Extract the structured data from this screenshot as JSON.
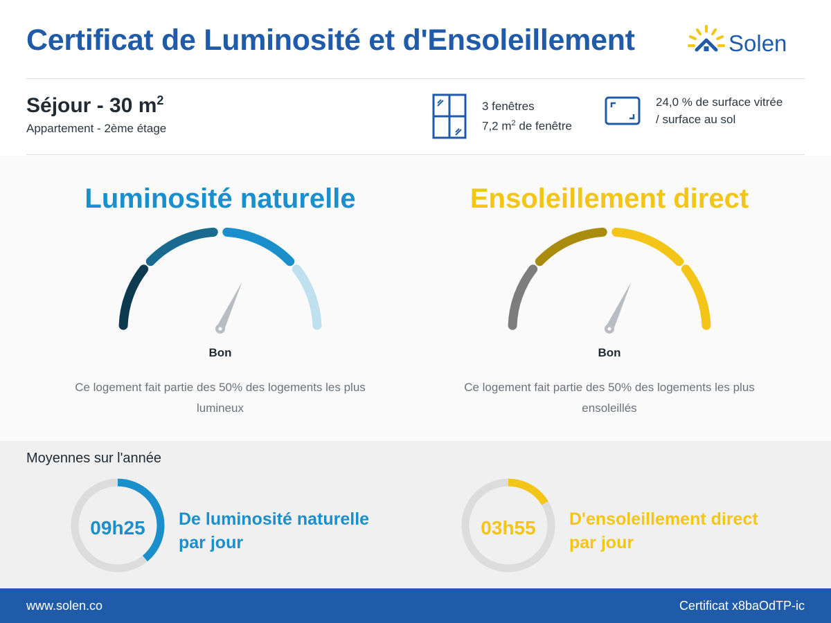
{
  "header": {
    "title": "Certificat de Luminosité et d'Ensoleillement",
    "logo_text": "Solen",
    "logo_icon": "sun-house-icon"
  },
  "room": {
    "title": "Séjour - 30 m",
    "title_sup": "2",
    "subtitle": "Appartement - 2ème étage"
  },
  "stats": {
    "windows_count": "3 fenêtres",
    "windows_area": "7,2 m",
    "windows_area_sup": "2",
    "windows_area_suffix": " de fenêtre",
    "glazed_line1": "24,0 % de surface vitrée",
    "glazed_line2": "/ surface au sol",
    "windows_icon": "window-icon",
    "surface_icon": "floor-area-icon"
  },
  "gauges": [
    {
      "title": "Luminosité naturelle",
      "color": "#1a8fcc",
      "segment_colors": [
        "#0e3a4f",
        "#196a8e",
        "#1a8fcc",
        "#bfe0ef"
      ],
      "needle_segment": 2,
      "level": "Bon",
      "description": "Ce logement fait partie des 50% des logements les plus lumineux"
    },
    {
      "title": "Ensoleillement direct",
      "color": "#f2c518",
      "segment_colors": [
        "#7d7d7d",
        "#a98c0e",
        "#f2c518",
        "#f2c518"
      ],
      "needle_segment": 2,
      "level": "Bon",
      "description": "Ce logement fait partie des 50% des logements les plus ensoleillés"
    }
  ],
  "averages": {
    "title": "Moyennes sur l'année",
    "items": [
      {
        "value": "09h25",
        "fraction": 0.39,
        "line1": "De luminosité naturelle",
        "line2": "par jour",
        "color": "#1a8fcc"
      },
      {
        "value": "03h55",
        "fraction": 0.163,
        "line1": "D'ensoleillement direct",
        "line2": "par jour",
        "color": "#f2c518"
      }
    ]
  },
  "footer": {
    "website": "www.solen.co",
    "certificate": "Certificat x8baOdTP-ic"
  }
}
